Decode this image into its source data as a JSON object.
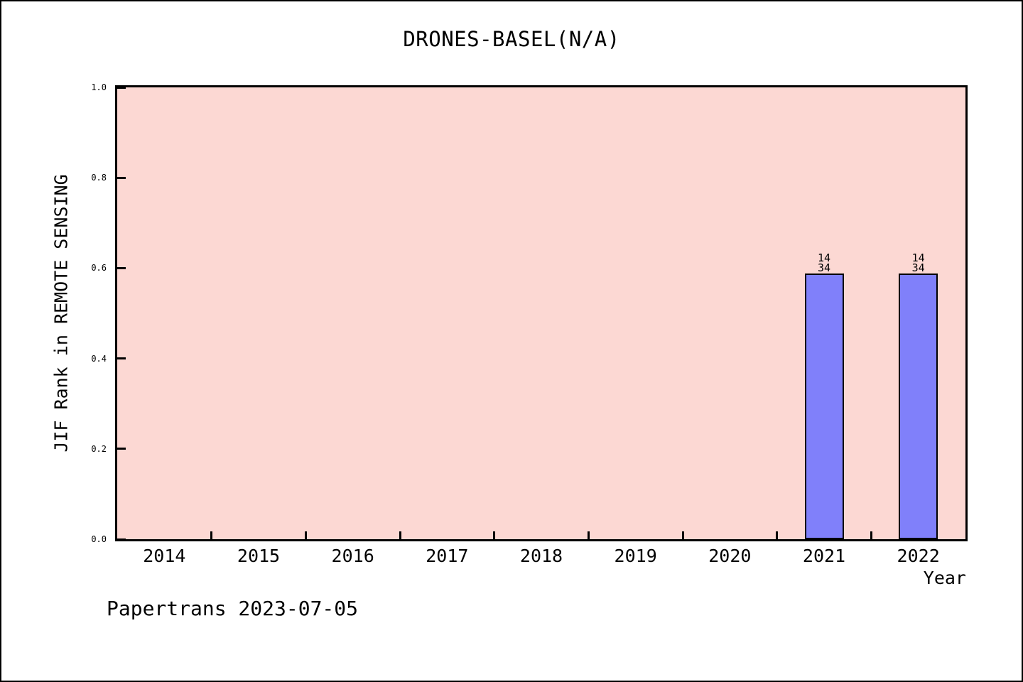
{
  "chart_data": {
    "type": "bar",
    "title": "DRONES-BASEL(N/A)",
    "xlabel": "Year",
    "ylabel": "JIF Rank in REMOTE SENSING",
    "x_categories": [
      "2014",
      "2015",
      "2016",
      "2017",
      "2018",
      "2019",
      "2020",
      "2021",
      "2022"
    ],
    "yticks": [
      "0.0",
      "0.2",
      "0.4",
      "0.6",
      "0.8",
      "1.0"
    ],
    "ylim": [
      0.0,
      1.0
    ],
    "grid": false,
    "legend": "none",
    "series": [
      {
        "name": "JIF Rank in REMOTE SENSING",
        "points": [
          {
            "year": "2021",
            "value": 0.588,
            "rank": "14",
            "total": "34",
            "label": "14\n34"
          },
          {
            "year": "2022",
            "value": 0.588,
            "rank": "14",
            "total": "34",
            "label": "14\n34"
          }
        ]
      }
    ],
    "colors": {
      "plot_background": "#fcd8d3",
      "bar_fill": "#8080fa",
      "bar_edge": "#000000",
      "axis": "#000000",
      "text": "#000000",
      "page_background": "#ffffff"
    }
  },
  "footer": {
    "text": "Papertrans 2023-07-05"
  }
}
